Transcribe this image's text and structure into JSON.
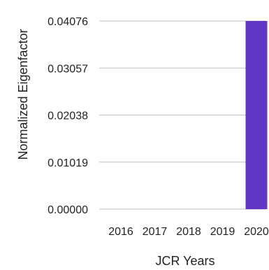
{
  "chart_data": {
    "type": "bar",
    "title": "",
    "xlabel": "JCR Years",
    "ylabel": "Normalized Eigenfactor",
    "categories": [
      "2016",
      "2017",
      "2018",
      "2019",
      "2020"
    ],
    "values": [
      0,
      0,
      0,
      0,
      0.04076
    ],
    "ylim": [
      0,
      0.04076
    ],
    "yticks": [
      "0.00000",
      "0.01019",
      "0.02038",
      "0.03057",
      "0.04076"
    ],
    "bar_color": "#6236c4",
    "grid": false
  }
}
